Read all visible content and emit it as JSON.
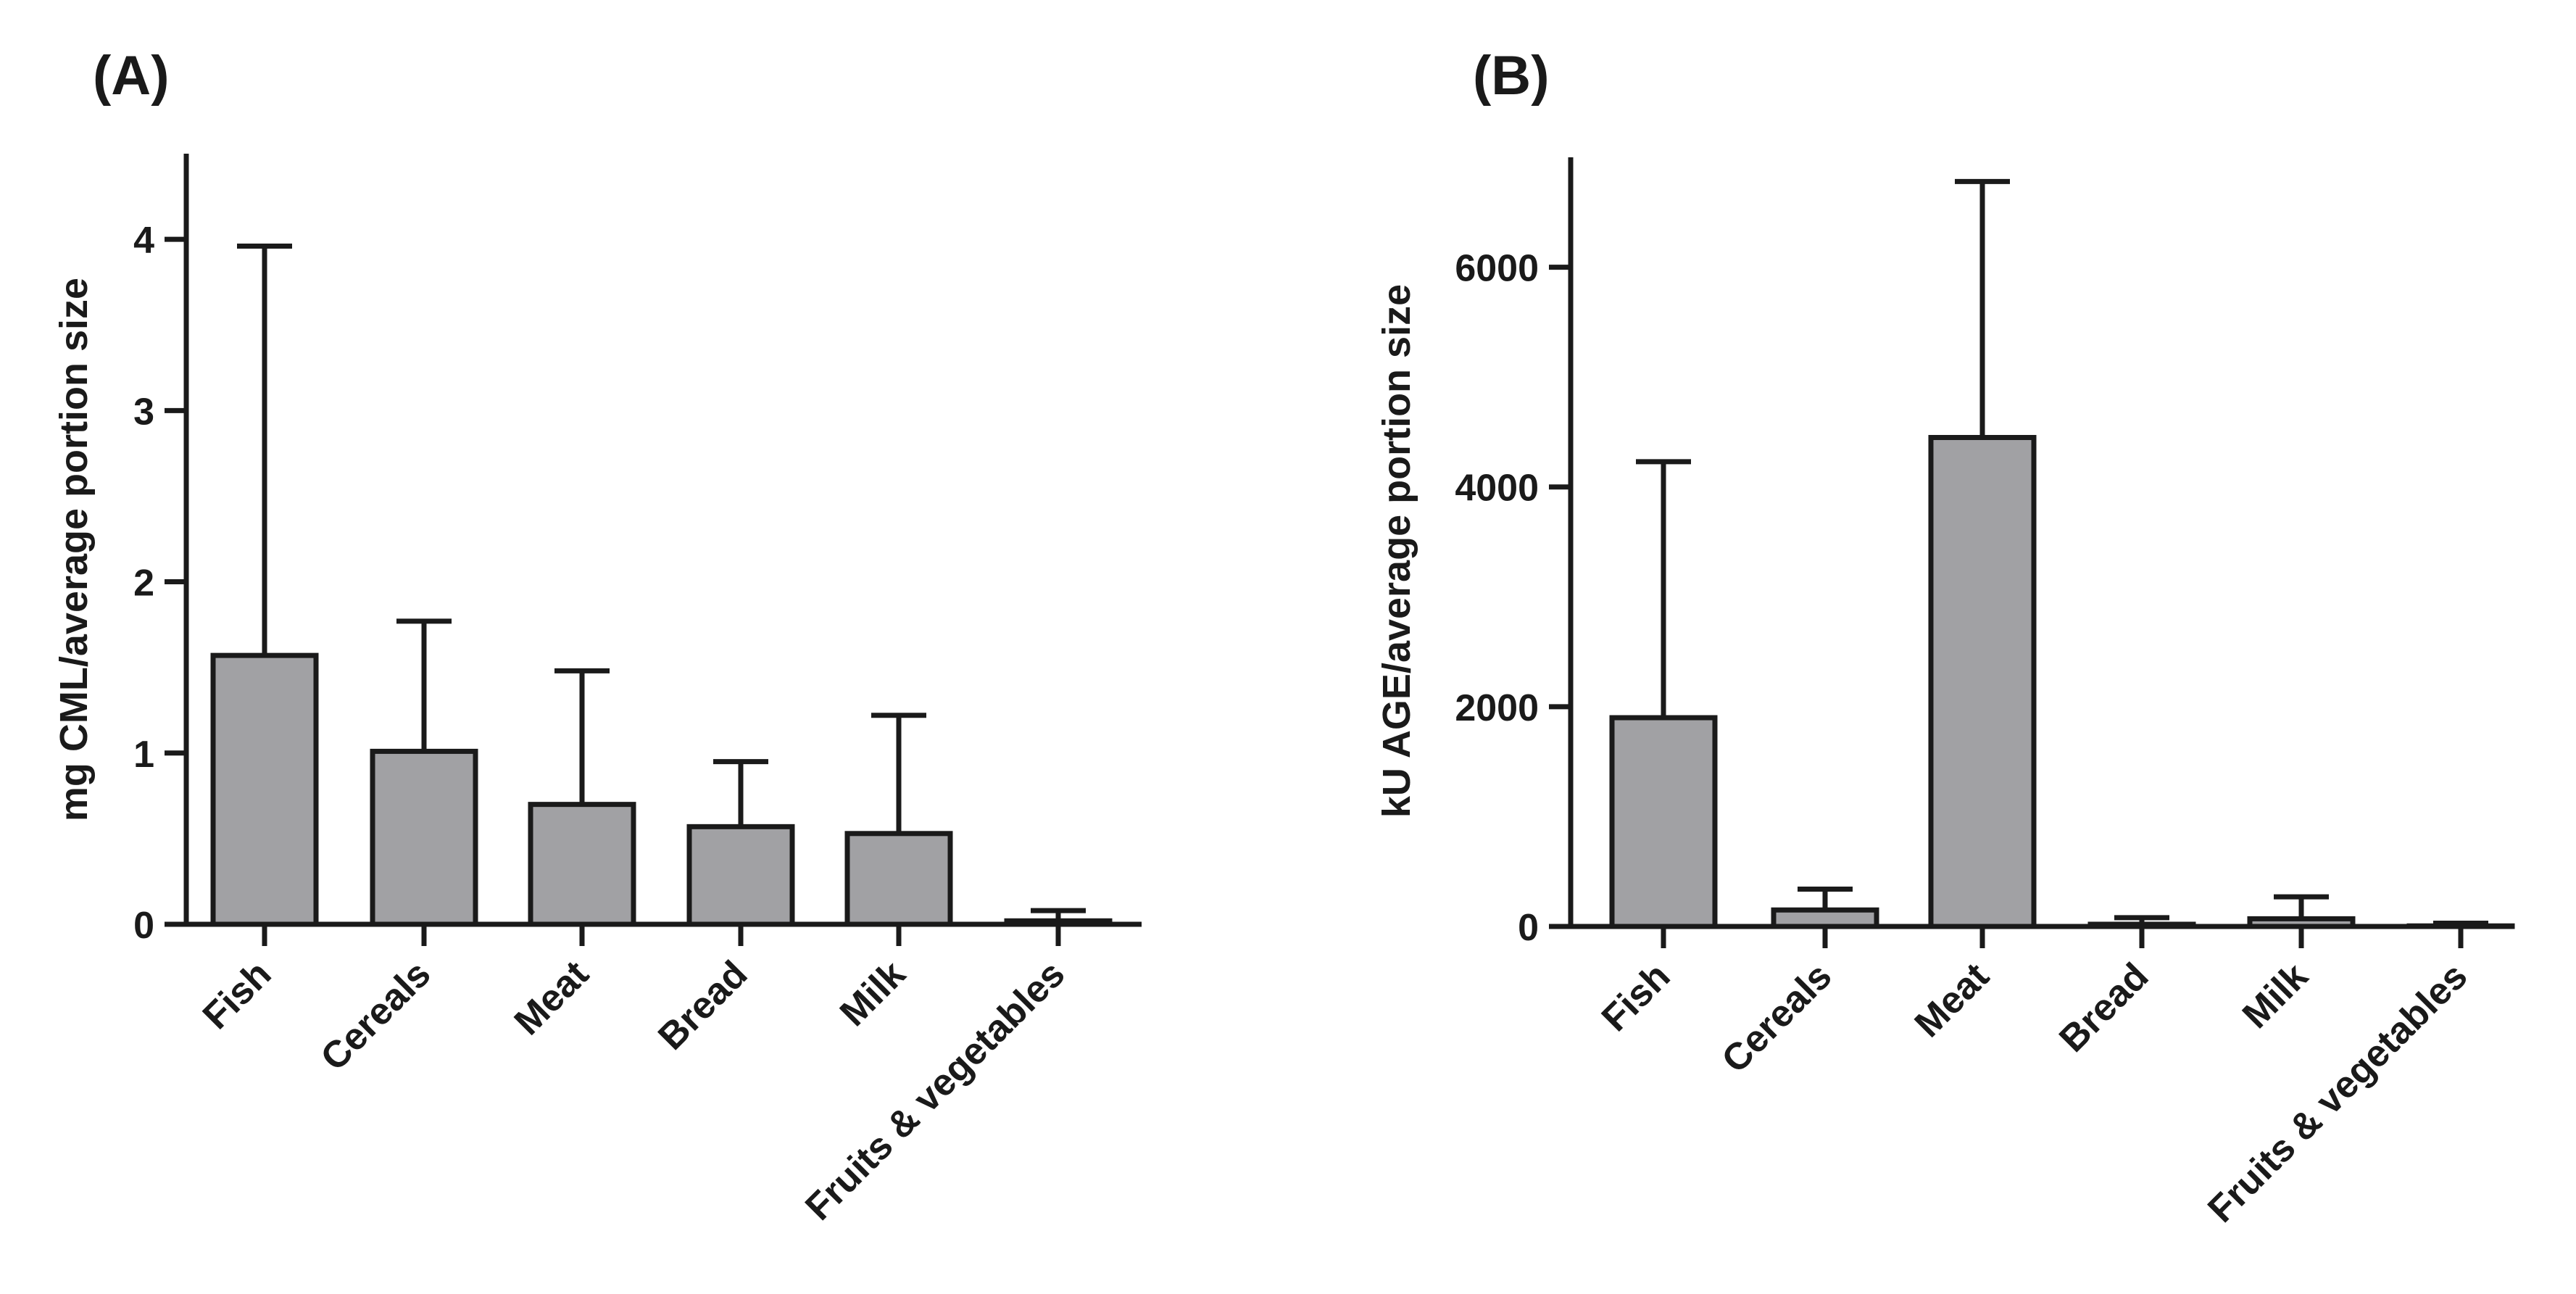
{
  "chart_data": [
    {
      "panel_label": "(A)",
      "type": "bar",
      "ylabel": "mg CML/average portion size",
      "xlabel": "",
      "categories": [
        "Fish",
        "Cereals",
        "Meat",
        "Bread",
        "Milk",
        "Fruits & vegetables"
      ],
      "values": [
        1.57,
        1.01,
        0.7,
        0.57,
        0.53,
        0.02
      ],
      "error_upper": [
        3.96,
        1.77,
        1.48,
        0.95,
        1.22,
        0.08
      ],
      "ylim": [
        0,
        4.5
      ],
      "yticks": [
        0,
        1,
        2,
        3,
        4
      ],
      "ytick_labels": [
        "0",
        "1",
        "2",
        "3",
        "4"
      ],
      "bar_color": "#a1a1a4",
      "line_color": "#1a1a1a"
    },
    {
      "panel_label": "(B)",
      "type": "bar",
      "ylabel": "kU AGE/average portion size",
      "xlabel": "",
      "categories": [
        "Fish",
        "Cereals",
        "Meat",
        "Bread",
        "Milk",
        "Fruits & vegetables"
      ],
      "values": [
        1900,
        150,
        4450,
        20,
        70,
        5
      ],
      "error_upper": [
        4230,
        340,
        6780,
        80,
        270,
        30
      ],
      "ylim": [
        0,
        7000
      ],
      "yticks": [
        0,
        2000,
        4000,
        6000
      ],
      "ytick_labels": [
        "0",
        "2000",
        "4000",
        "6000"
      ],
      "bar_color": "#a1a1a4",
      "line_color": "#1a1a1a"
    }
  ]
}
